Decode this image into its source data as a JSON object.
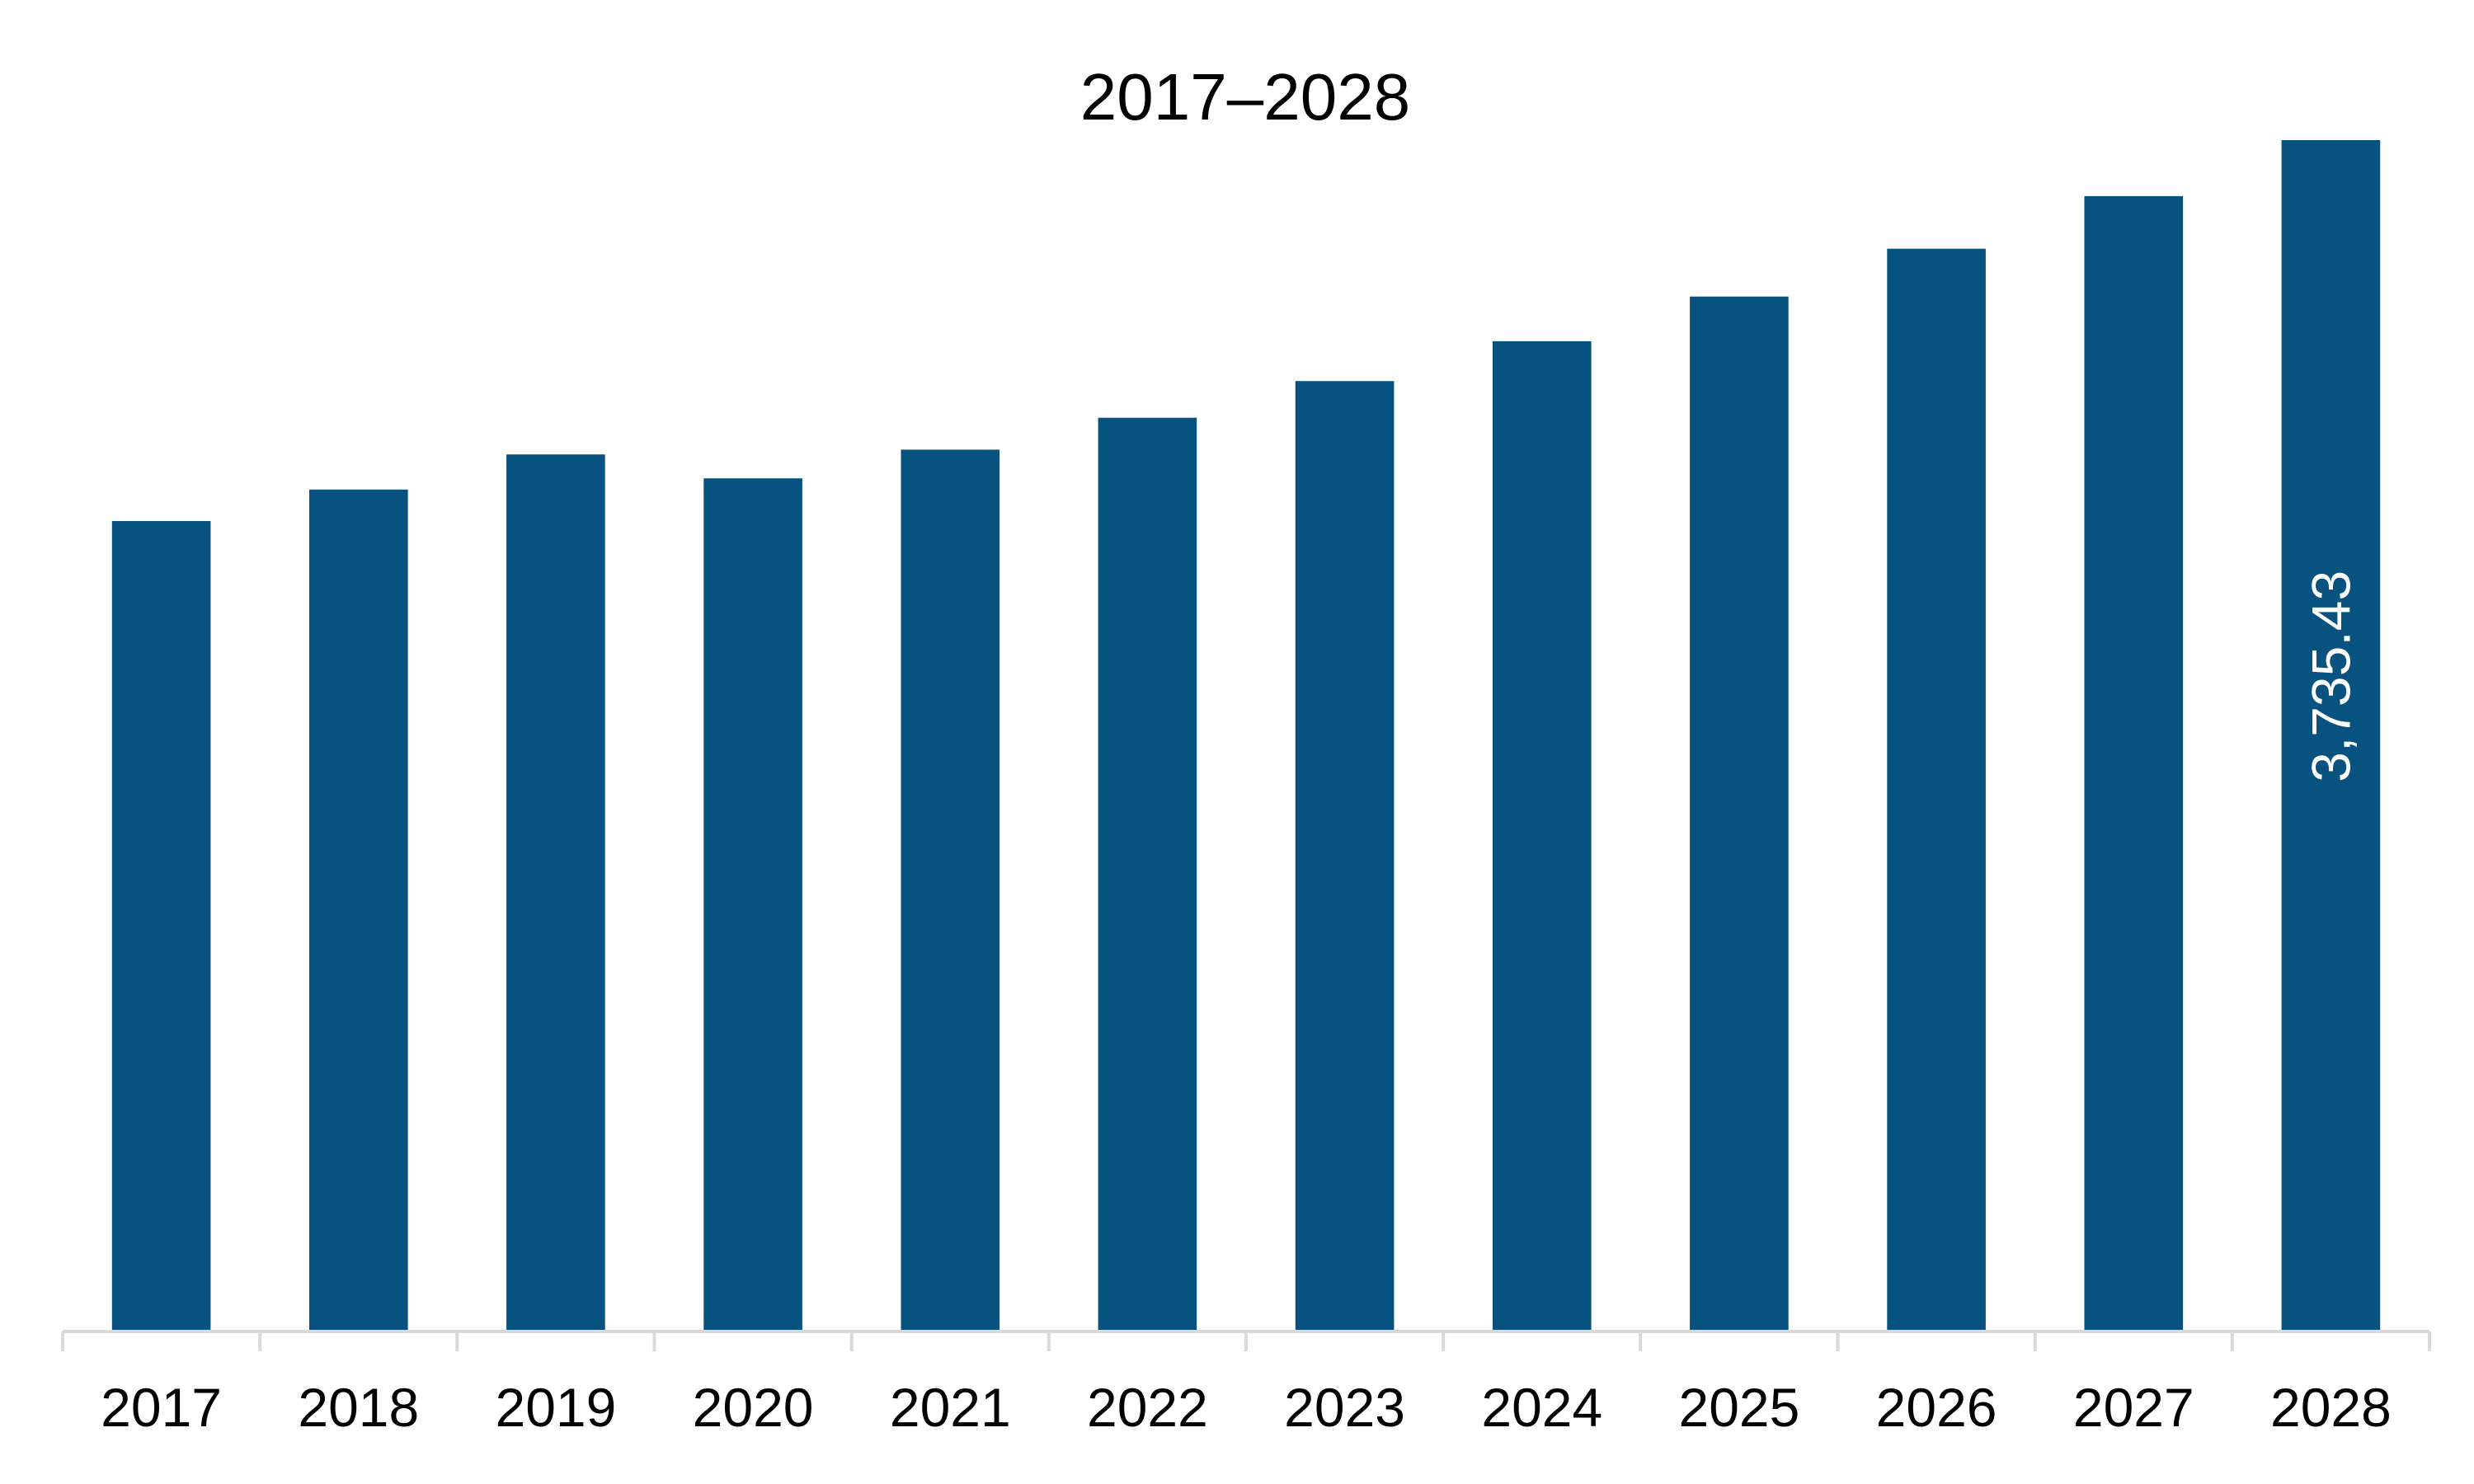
{
  "chart_data": {
    "type": "bar",
    "title": "2017–2028",
    "xlabel": "",
    "ylabel": "",
    "categories": [
      "2017",
      "2018",
      "2019",
      "2020",
      "2021",
      "2022",
      "2023",
      "2024",
      "2025",
      "2026",
      "2027",
      "2028"
    ],
    "values": [
      2541,
      2640,
      2750,
      2675,
      2765,
      2865,
      2980,
      3105,
      3245,
      3395,
      3560,
      3735.43
    ],
    "data_labels": [
      {
        "category": "2028",
        "text": "3,735.43"
      }
    ],
    "ylim": [
      0,
      3735.43
    ],
    "grid": false,
    "legend": "none",
    "colors": {
      "bar": "#08527F",
      "axis": "#D9D9D9",
      "label_text": "#FFFFFF"
    }
  }
}
